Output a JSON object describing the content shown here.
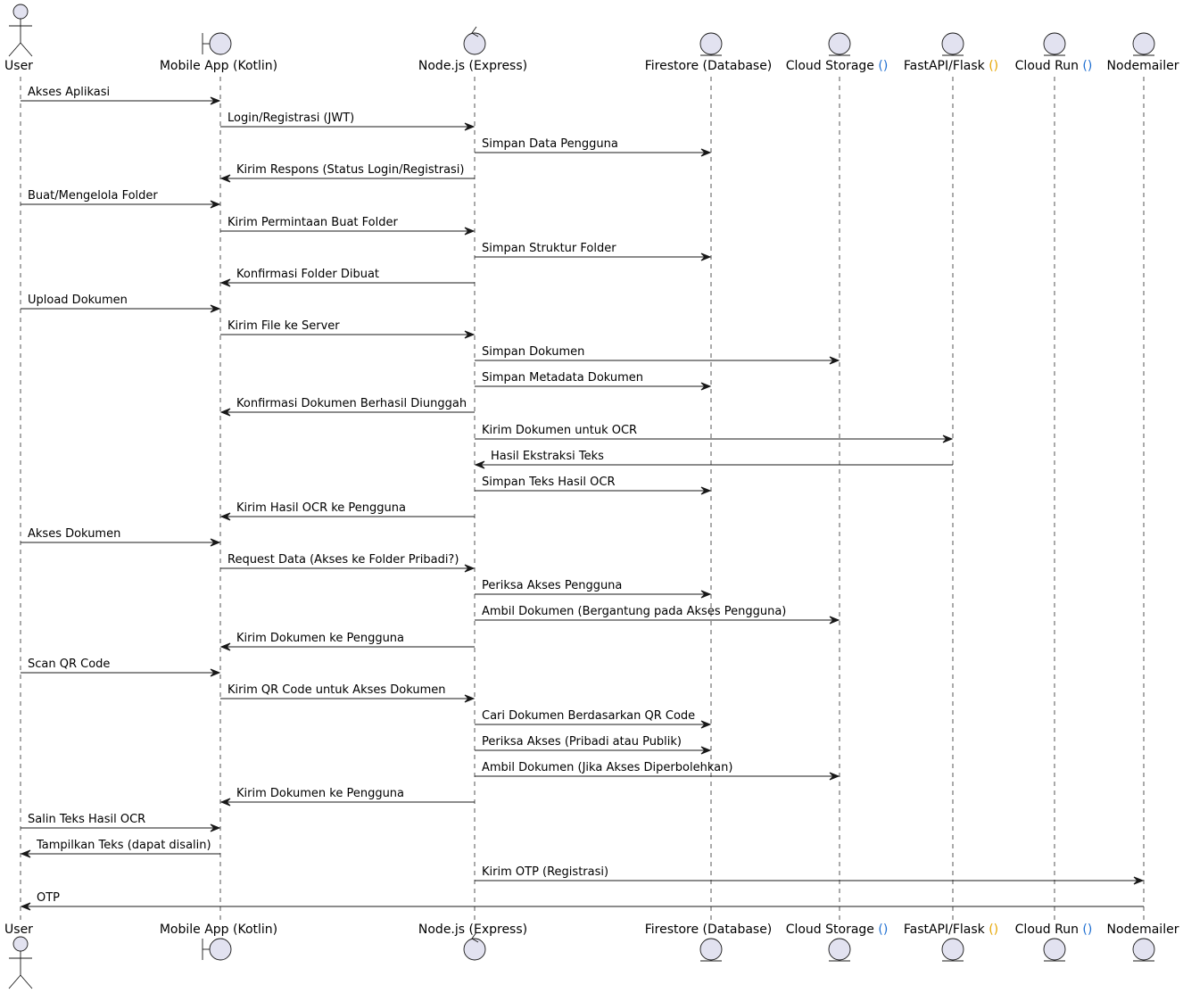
{
  "participants": [
    {
      "id": "user",
      "name": "User",
      "kind": "actor"
    },
    {
      "id": "mobile",
      "name": "Mobile App (Kotlin)",
      "kind": "boundary"
    },
    {
      "id": "node",
      "name": "Node.js (Express)",
      "kind": "control"
    },
    {
      "id": "firestore",
      "name": "Firestore (Database)",
      "kind": "entity"
    },
    {
      "id": "storage",
      "name": "Cloud Storage ",
      "suffix": "()",
      "suffix_color": "#1f6fd1",
      "kind": "entity"
    },
    {
      "id": "fastapi",
      "name": "FastAPI/Flask ",
      "suffix": "()",
      "suffix_color": "#e6a500",
      "kind": "entity"
    },
    {
      "id": "cloudrun",
      "name": "Cloud Run ",
      "suffix": "()",
      "suffix_color": "#1f6fd1",
      "kind": "entity"
    },
    {
      "id": "nodemailer",
      "name": "Nodemailer",
      "kind": "entity"
    }
  ],
  "messages": [
    {
      "from": "user",
      "to": "mobile",
      "label": "Akses Aplikasi"
    },
    {
      "from": "mobile",
      "to": "node",
      "label": "Login/Registrasi (JWT)"
    },
    {
      "from": "node",
      "to": "firestore",
      "label": "Simpan Data Pengguna"
    },
    {
      "from": "node",
      "to": "mobile",
      "label": "Kirim Respons (Status Login/Registrasi)"
    },
    {
      "from": "user",
      "to": "mobile",
      "label": "Buat/Mengelola Folder"
    },
    {
      "from": "mobile",
      "to": "node",
      "label": "Kirim Permintaan Buat Folder"
    },
    {
      "from": "node",
      "to": "firestore",
      "label": "Simpan Struktur Folder"
    },
    {
      "from": "node",
      "to": "mobile",
      "label": "Konfirmasi Folder Dibuat"
    },
    {
      "from": "user",
      "to": "mobile",
      "label": "Upload Dokumen"
    },
    {
      "from": "mobile",
      "to": "node",
      "label": "Kirim File ke Server"
    },
    {
      "from": "node",
      "to": "storage",
      "label": "Simpan Dokumen"
    },
    {
      "from": "node",
      "to": "firestore",
      "label": "Simpan Metadata Dokumen"
    },
    {
      "from": "node",
      "to": "mobile",
      "label": "Konfirmasi Dokumen Berhasil Diunggah"
    },
    {
      "from": "node",
      "to": "fastapi",
      "label": "Kirim Dokumen untuk OCR"
    },
    {
      "from": "fastapi",
      "to": "node",
      "label": "Hasil Ekstraksi Teks"
    },
    {
      "from": "node",
      "to": "firestore",
      "label": "Simpan Teks Hasil OCR"
    },
    {
      "from": "node",
      "to": "mobile",
      "label": "Kirim Hasil OCR ke Pengguna"
    },
    {
      "from": "user",
      "to": "mobile",
      "label": "Akses Dokumen"
    },
    {
      "from": "mobile",
      "to": "node",
      "label": "Request Data (Akses ke Folder Pribadi?)"
    },
    {
      "from": "node",
      "to": "firestore",
      "label": "Periksa Akses Pengguna"
    },
    {
      "from": "node",
      "to": "storage",
      "label": "Ambil Dokumen (Bergantung pada Akses Pengguna)"
    },
    {
      "from": "node",
      "to": "mobile",
      "label": "Kirim Dokumen ke Pengguna"
    },
    {
      "from": "user",
      "to": "mobile",
      "label": "Scan QR Code"
    },
    {
      "from": "mobile",
      "to": "node",
      "label": "Kirim QR Code untuk Akses Dokumen"
    },
    {
      "from": "node",
      "to": "firestore",
      "label": "Cari Dokumen Berdasarkan QR Code"
    },
    {
      "from": "node",
      "to": "firestore",
      "label": "Periksa Akses (Pribadi atau Publik)"
    },
    {
      "from": "node",
      "to": "storage",
      "label": "Ambil Dokumen (Jika Akses Diperbolehkan)"
    },
    {
      "from": "node",
      "to": "mobile",
      "label": "Kirim Dokumen ke Pengguna"
    },
    {
      "from": "user",
      "to": "mobile",
      "label": "Salin Teks Hasil OCR"
    },
    {
      "from": "mobile",
      "to": "user",
      "label": "Tampilkan Teks (dapat disalin)"
    },
    {
      "from": "node",
      "to": "nodemailer",
      "label": "Kirim OTP (Registrasi)"
    },
    {
      "from": "nodemailer",
      "to": "user",
      "label": "OTP"
    }
  ]
}
